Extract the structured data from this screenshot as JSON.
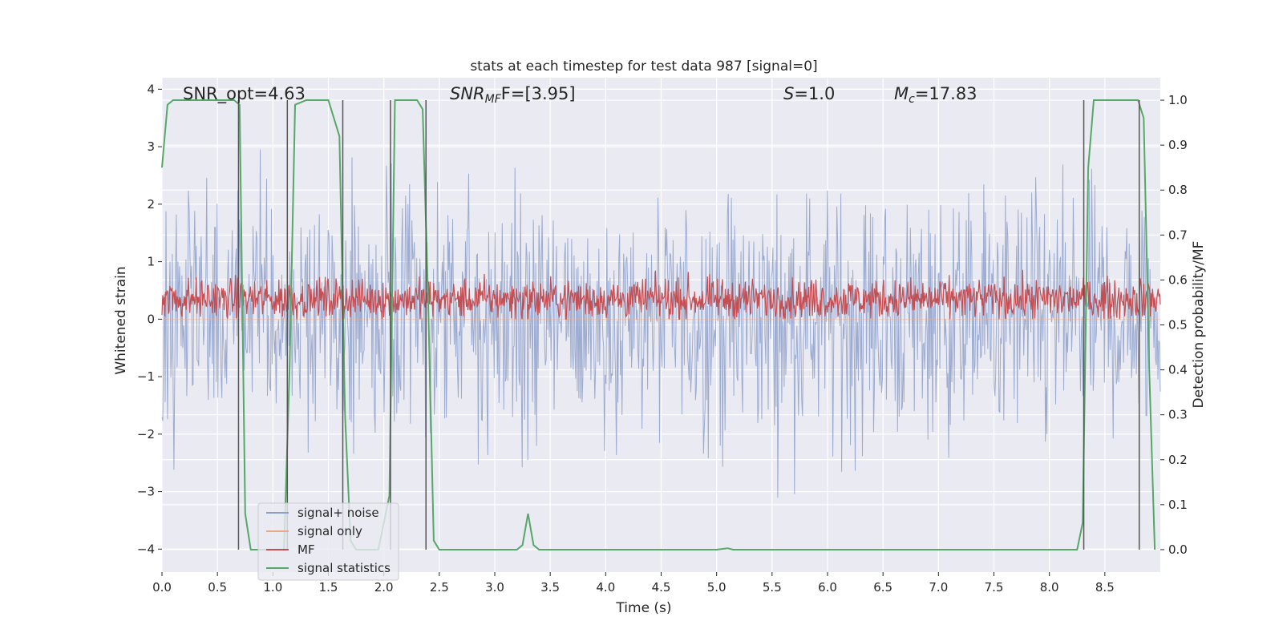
{
  "chart_data": {
    "type": "line",
    "title": "stats at each timestep for test data 987 [signal=0]",
    "xlabel": "Time (s)",
    "ylabel": "Whitened strain",
    "y2label": "Detection probability/MF",
    "xlim": [
      0.0,
      9.0
    ],
    "ylim": [
      -4.4,
      4.2
    ],
    "y2lim": [
      -0.05,
      1.05
    ],
    "xticks": [
      0.0,
      0.5,
      1.0,
      1.5,
      2.0,
      2.5,
      3.0,
      3.5,
      4.0,
      4.5,
      5.0,
      5.5,
      6.0,
      6.5,
      7.0,
      7.5,
      8.0,
      8.5
    ],
    "yticks": [
      -4,
      -3,
      -2,
      -1,
      0,
      1,
      2,
      3,
      4
    ],
    "y2ticks": [
      0.0,
      0.1,
      0.2,
      0.3,
      0.4,
      0.5,
      0.6,
      0.7,
      0.8,
      0.9,
      1.0
    ],
    "grid": true,
    "legend_position": "lower-left",
    "annotations": {
      "snr_opt": "SNR_opt=4.63",
      "snr_mf_name": "SNR",
      "snr_mf_sub": "MF",
      "snr_mf_value": "F=[3.95]",
      "s_name": "S",
      "s_value": "=1.0",
      "mc_name": "M",
      "mc_sub": "c",
      "mc_value": "=17.83"
    },
    "series": [
      {
        "name": "signal+ noise",
        "color": "#8da0cb",
        "axis": "left",
        "kind": "noise",
        "amplitude_range": [
          -3.6,
          3.6
        ]
      },
      {
        "name": "signal only",
        "color": "#e8a88a",
        "axis": "left",
        "kind": "flat",
        "values": [
          0.0
        ]
      },
      {
        "name": "MF",
        "color": "#c44e52",
        "axis": "left",
        "kind": "noise",
        "range": [
          0.0,
          1.0
        ]
      },
      {
        "name": "signal statistics",
        "color": "#55a868",
        "axis": "right",
        "x": [
          0.0,
          0.05,
          0.1,
          0.2,
          0.5,
          0.65,
          0.7,
          0.75,
          0.8,
          1.0,
          1.1,
          1.15,
          1.2,
          1.3,
          1.5,
          1.6,
          1.65,
          1.7,
          1.75,
          1.95,
          2.05,
          2.1,
          2.15,
          2.3,
          2.35,
          2.4,
          2.45,
          2.5,
          3.2,
          3.25,
          3.3,
          3.35,
          3.4,
          5.0,
          5.1,
          5.15,
          8.25,
          8.3,
          8.35,
          8.4,
          8.8,
          8.85,
          8.9,
          8.95
        ],
        "y": [
          0.85,
          0.99,
          1.0,
          1.0,
          1.0,
          1.0,
          0.99,
          0.08,
          0.0,
          0.0,
          0.0,
          0.4,
          0.99,
          1.0,
          1.0,
          0.92,
          0.3,
          0.02,
          0.0,
          0.0,
          0.12,
          1.0,
          1.0,
          1.0,
          0.98,
          0.55,
          0.02,
          0.0,
          0.0,
          0.01,
          0.08,
          0.01,
          0.0,
          0.0,
          0.003,
          0.0,
          0.0,
          0.06,
          0.85,
          1.0,
          1.0,
          0.96,
          0.4,
          0.0
        ]
      }
    ],
    "vertical_markers_x": [
      0.69,
      1.13,
      1.63,
      2.06,
      2.38,
      8.31,
      8.81
    ]
  }
}
